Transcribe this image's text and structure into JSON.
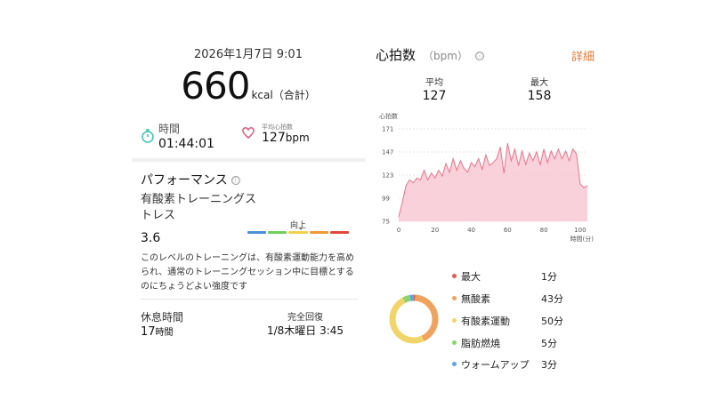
{
  "summary": {
    "date": "2026年1月7日 9:01",
    "kcal_value": "660",
    "kcal_unit": "kcal（合計）",
    "time_label": "時間",
    "time_value": "01:44:01",
    "avg_hr_label": "平均心拍数",
    "avg_hr_value": "127",
    "avg_hr_unit": "bpm"
  },
  "performance": {
    "title": "パフォーマンス",
    "info_icon": "ⓘ",
    "stress_label": "有酸素トレーニングストレス",
    "stress_value": "3.6",
    "scale_label": "向上",
    "scale_level": 3.6,
    "scale_colors": [
      "#4a8fd6",
      "#6fcf5a",
      "#f0d24a",
      "#f0993a",
      "#e0483a"
    ],
    "description": "このレベルのトレーニングは、有酸素運動能力を高められ、通常のトレーニングセッション中に目標とするのにちょうどよい強度です"
  },
  "recovery": {
    "rest_label": "休息時間",
    "rest_value": "17",
    "rest_unit": "時間",
    "full_label": "完全回復",
    "full_value": "1/8木曜日 3:45"
  },
  "heart_rate": {
    "title": "心拍数",
    "unit": "（bpm）",
    "detail_label": "詳細",
    "avg_label": "平均",
    "avg_value": "127",
    "max_label": "最大",
    "max_value": "158"
  },
  "chart_data": {
    "type": "area",
    "title": "",
    "ylabel": "心拍数",
    "xlabel": "時間(分)",
    "y_ticks": [
      "171",
      "147",
      "123",
      "99",
      "75"
    ],
    "x_ticks": [
      "0",
      "20",
      "40",
      "60",
      "80",
      "100"
    ],
    "xlim": [
      0,
      104
    ],
    "ylim": [
      75,
      171
    ],
    "color": "#e8748a",
    "fill": "#f7c9d3",
    "x": [
      0,
      2,
      4,
      6,
      8,
      10,
      12,
      14,
      16,
      18,
      20,
      22,
      24,
      26,
      28,
      30,
      32,
      34,
      36,
      38,
      40,
      42,
      44,
      46,
      48,
      50,
      52,
      54,
      56,
      58,
      60,
      62,
      64,
      66,
      68,
      70,
      72,
      74,
      76,
      78,
      80,
      82,
      84,
      86,
      88,
      90,
      92,
      94,
      96,
      98,
      100,
      102,
      104
    ],
    "values": [
      80,
      95,
      112,
      118,
      115,
      120,
      118,
      128,
      118,
      125,
      120,
      128,
      122,
      135,
      126,
      140,
      128,
      138,
      130,
      126,
      136,
      132,
      140,
      129,
      144,
      133,
      136,
      140,
      152,
      125,
      156,
      138,
      150,
      133,
      148,
      134,
      146,
      138,
      147,
      134,
      150,
      136,
      148,
      140,
      150,
      140,
      148,
      138,
      150,
      145,
      114,
      110,
      112
    ]
  },
  "zones": {
    "chart_type": "donut",
    "items": [
      {
        "name": "最大",
        "minutes": "1分",
        "value": 1,
        "color": "#e25b4c"
      },
      {
        "name": "無酸素",
        "minutes": "43分",
        "value": 43,
        "color": "#f0a35e"
      },
      {
        "name": "有酸素運動",
        "minutes": "50分",
        "value": 50,
        "color": "#f2d56a"
      },
      {
        "name": "脂肪燃焼",
        "minutes": "5分",
        "value": 5,
        "color": "#8bd46e"
      },
      {
        "name": "ウォームアップ",
        "minutes": "3分",
        "value": 3,
        "color": "#5ea6e0"
      }
    ]
  }
}
